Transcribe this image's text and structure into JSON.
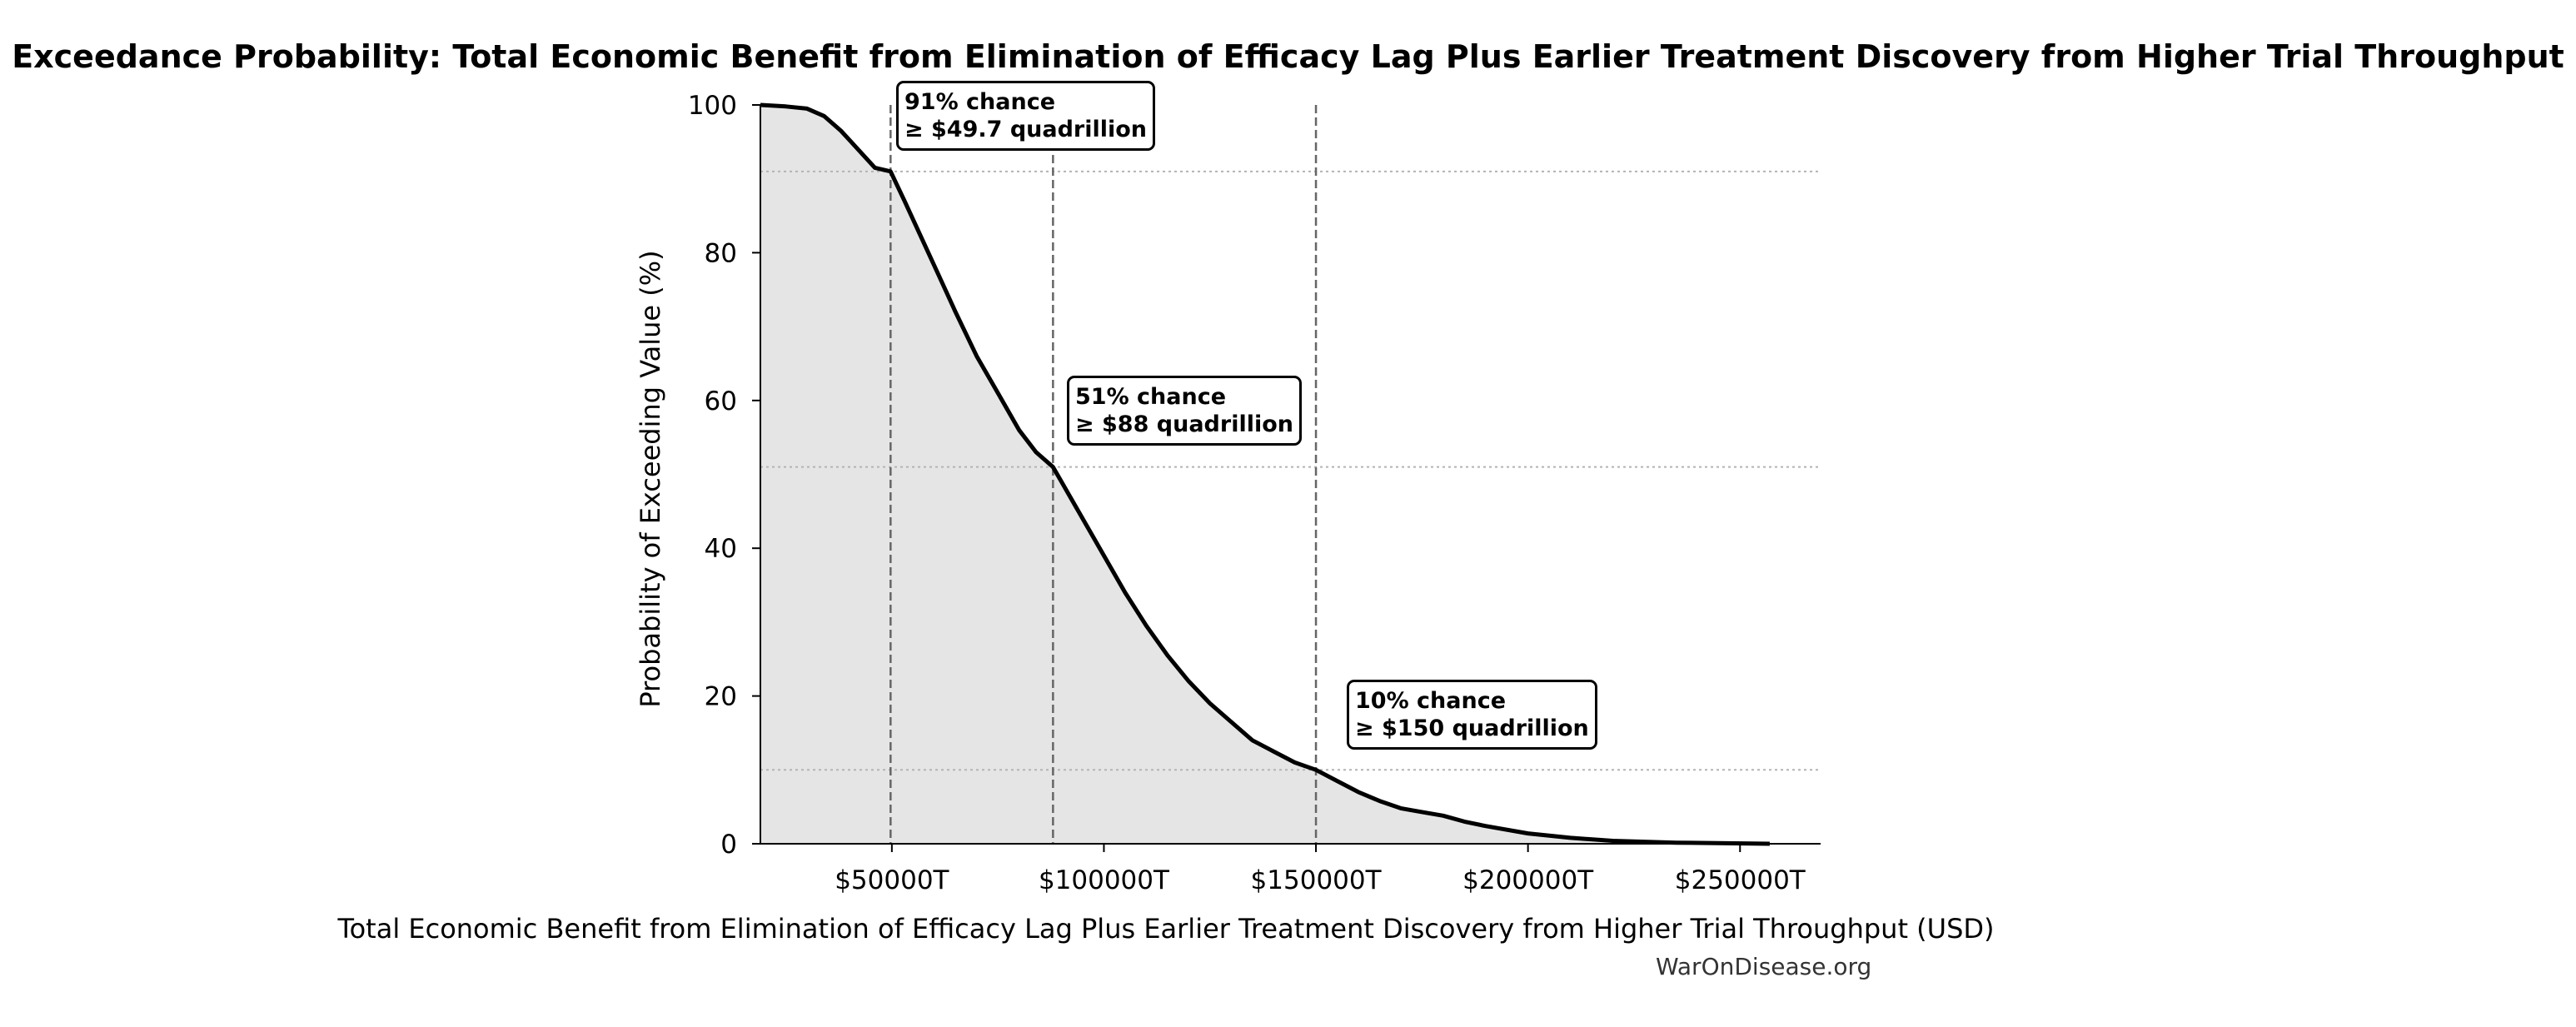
{
  "chart_data": {
    "type": "area",
    "title": "Exceedance Probability: Total Economic Benefit from Elimination of Efficacy Lag Plus Earlier Treatment Discovery from Higher Trial Throughput",
    "xlabel": "Total Economic Benefit from Elimination of Efficacy Lag Plus Earlier Treatment Discovery from Higher Trial Throughput (USD)",
    "ylabel": "Probability of Exceeding Value (%)",
    "xlim": [
      19000,
      269000
    ],
    "ylim": [
      0,
      100
    ],
    "x_ticks": [
      50000,
      100000,
      150000,
      200000,
      250000
    ],
    "x_tick_labels": [
      "$50000T",
      "$100000T",
      "$150000T",
      "$200000T",
      "$250000T"
    ],
    "y_ticks": [
      0,
      20,
      40,
      60,
      80,
      100
    ],
    "y_tick_labels": [
      "0",
      "20",
      "40",
      "60",
      "80",
      "100"
    ],
    "series": [
      {
        "x": [
          19000,
          25000,
          30000,
          34000,
          38000,
          42000,
          46000,
          49700,
          53000,
          57000,
          61000,
          65000,
          70000,
          75000,
          80000,
          84000,
          88000,
          92000,
          96000,
          100000,
          105000,
          110000,
          115000,
          120000,
          125000,
          130000,
          135000,
          140000,
          145000,
          150000,
          155000,
          160000,
          165000,
          170000,
          175000,
          180000,
          185000,
          190000,
          200000,
          210000,
          220000,
          235000,
          257000
        ],
        "y": [
          100,
          99.8,
          99.5,
          98.5,
          96.5,
          94,
          91.5,
          91,
          87,
          82,
          77,
          72,
          66,
          61,
          56,
          53,
          51,
          47,
          43,
          39,
          34,
          29.5,
          25.5,
          22,
          19,
          16.5,
          14,
          12.5,
          11,
          10,
          8.5,
          7,
          5.8,
          4.8,
          4.3,
          3.8,
          3,
          2.4,
          1.4,
          0.8,
          0.4,
          0.15,
          0
        ]
      }
    ],
    "reference_lines": {
      "vertical_x": [
        49700,
        88000,
        150000
      ],
      "horizontal_y": [
        91,
        51,
        10
      ]
    },
    "annotations": [
      {
        "line1": "91% chance",
        "line2": "≥ $49.7 quadrillion"
      },
      {
        "line1": "51% chance",
        "line2": "≥ $88 quadrillion"
      },
      {
        "line1": "10% chance",
        "line2": "≥ $150 quadrillion"
      }
    ],
    "grid": false,
    "colors": {
      "line": "#000000",
      "fill": "#e5e5e5",
      "vline": "#666666",
      "hline": "#b3b3b3"
    }
  },
  "footer": {
    "source": "WarOnDisease.org"
  }
}
